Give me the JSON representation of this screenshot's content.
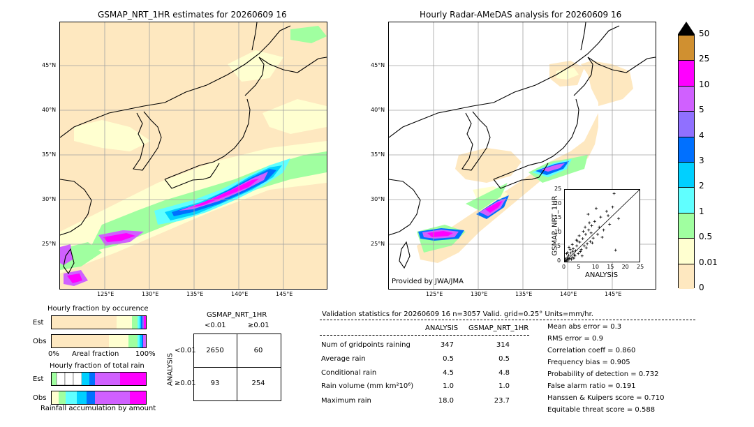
{
  "left_map": {
    "title": "GSMAP_NRT_1HR estimates for 20260609 16",
    "lat_labels": [
      "45°N",
      "40°N",
      "35°N",
      "30°N",
      "25°N"
    ],
    "lon_labels": [
      "125°E",
      "130°E",
      "135°E",
      "140°E",
      "145°E"
    ]
  },
  "right_map": {
    "title": "Hourly Radar-AMeDAS analysis for 20260609 16",
    "lat_labels": [
      "45°N",
      "40°N",
      "35°N",
      "30°N",
      "25°N"
    ],
    "lon_labels": [
      "125°E",
      "130°E",
      "135°E",
      "140°E",
      "145°E"
    ],
    "credit": "Provided by JWA/JMA"
  },
  "colorbar": {
    "levels": [
      "0",
      "0.01",
      "0.5",
      "1",
      "2",
      "3",
      "4",
      "5",
      "10",
      "25",
      "50"
    ],
    "colors": [
      "#fee8c0",
      "#ffffd0",
      "#a0ffa0",
      "#60ffff",
      "#00d0ff",
      "#0070ff",
      "#9070ff",
      "#d060ff",
      "#ff00ff",
      "#d09030"
    ]
  },
  "scatter": {
    "xlabel": "ANALYSIS",
    "ylabel": "GSMAP_NRT_1HR",
    "ticks": [
      "0",
      "5",
      "10",
      "15",
      "20",
      "25"
    ]
  },
  "occurrence": {
    "title": "Hourly fraction by occurence",
    "rows": [
      "Est",
      "Obs"
    ],
    "axis_left": "0%",
    "axis_mid": "Areal fraction",
    "axis_right": "100%"
  },
  "total_rain": {
    "title": "Hourly fraction of total rain",
    "rows": [
      "Est",
      "Obs"
    ],
    "axis_label": "Rainfall accumulation by amount"
  },
  "contingency": {
    "title": "GSMAP_NRT_1HR",
    "col_lt": "<0.01",
    "col_ge": "≥0.01",
    "row_lt": "<0.01",
    "row_ge": "≥0.01",
    "ylabel": "ANALYSIS",
    "cells": [
      "2650",
      "60",
      "93",
      "254"
    ]
  },
  "validation": {
    "header": "Validation statistics for 20260609 16  n=3057 Valid. grid=0.25° Units=mm/hr.",
    "col1": "ANALYSIS",
    "col2": "GSMAP_NRT_1HR",
    "rows": [
      {
        "label": "Num of gridpoints raining",
        "a": "347",
        "b": "314"
      },
      {
        "label": "Average rain",
        "a": "0.5",
        "b": "0.5"
      },
      {
        "label": "Conditional rain",
        "a": "4.5",
        "b": "4.8"
      },
      {
        "label": "Rain volume (mm km²10⁶)",
        "a": "1.0",
        "b": "1.0"
      },
      {
        "label": "Maximum rain",
        "a": "18.0",
        "b": "23.7"
      }
    ],
    "scores": [
      "Mean abs error =    0.3",
      "RMS error =    0.9",
      "Correlation coeff =  0.860",
      "Frequency bias =  0.905",
      "Probability of detection =  0.732",
      "False alarm ratio =  0.191",
      "Hanssen & Kuipers score =  0.710",
      "Equitable threat score =  0.588"
    ]
  },
  "chart_data": {
    "type": "scatter",
    "xlabel": "ANALYSIS",
    "ylabel": "GSMAP_NRT_1HR",
    "xlim": [
      0,
      25
    ],
    "ylim": [
      0,
      25
    ],
    "x": [
      0.2,
      0.5,
      0.8,
      1.0,
      1.3,
      1.6,
      2.0,
      2.4,
      2.8,
      3.2,
      3.6,
      4.0,
      4.5,
      5.0,
      5.5,
      6.0,
      6.5,
      7.0,
      7.5,
      8.0,
      8.5,
      9.0,
      9.5,
      10.0,
      11.0,
      12.0,
      13.0,
      14.0,
      15.0,
      16.0,
      17.0,
      18.0,
      0.3,
      0.6,
      1.1,
      1.8,
      2.5,
      3.0,
      4.2,
      5.2,
      6.2,
      7.2,
      8.2,
      9.2,
      10.5,
      12.5,
      14.5,
      2.2,
      3.4,
      1.4,
      5.8,
      0.9,
      4.8,
      6.8,
      8.8,
      11.5,
      7.8,
      3.9,
      2.7,
      16.5
    ],
    "y": [
      0.4,
      0.2,
      1.5,
      0.8,
      2.2,
      1.1,
      3.0,
      1.6,
      4.5,
      2.4,
      3.8,
      5.5,
      2.8,
      6.8,
      4.2,
      8.0,
      5.5,
      9.5,
      6.2,
      11.0,
      7.0,
      12.5,
      8.2,
      14.0,
      9.5,
      15.5,
      11.0,
      17.5,
      13.0,
      19.0,
      4.0,
      15.0,
      1.0,
      2.8,
      0.5,
      4.2,
      6.0,
      1.2,
      7.2,
      3.5,
      10.5,
      4.8,
      13.5,
      6.5,
      18.5,
      8.5,
      16.0,
      0.8,
      2.0,
      5.0,
      2.0,
      3.2,
      9.0,
      12.0,
      10.0,
      12.0,
      16.5,
      7.5,
      3.6,
      23.7
    ]
  }
}
